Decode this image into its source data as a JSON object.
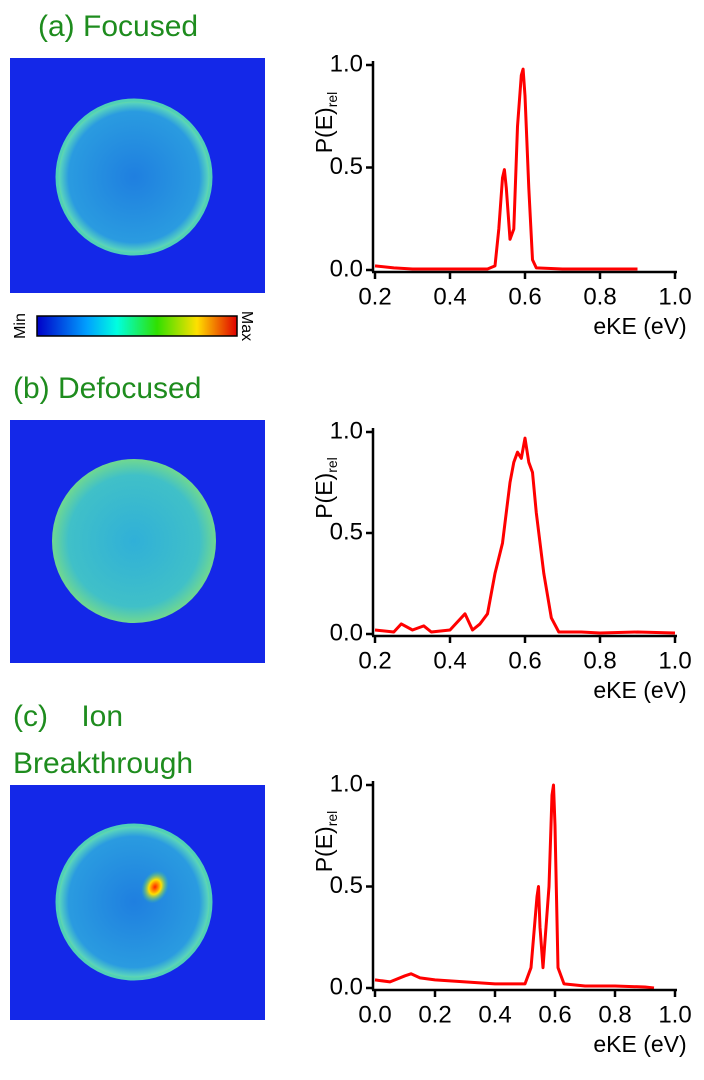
{
  "chart_data": [
    {
      "type": "line",
      "title": "(a) Focused",
      "colorbar_labels": [
        "Min",
        "Max"
      ],
      "y_label": "P(E)",
      "y_label_sub": "rel",
      "x_label": "eKE (eV)",
      "xlim": [
        0.2,
        1.0
      ],
      "xticks": [
        0.2,
        0.4,
        0.6,
        0.8,
        {
          "value": 1.0,
          "label": "1.0"
        }
      ],
      "ylim": [
        0,
        1.0
      ],
      "yticks": [
        {
          "value": 0,
          "label": "0.0"
        },
        0.5,
        {
          "value": 1.0,
          "label": "1.0"
        }
      ],
      "series": [
        {
          "color": "#ff0000",
          "x": [
            0.2,
            0.25,
            0.3,
            0.4,
            0.5,
            0.52,
            0.53,
            0.54,
            0.545,
            0.55,
            0.56,
            0.57,
            0.58,
            0.59,
            0.595,
            0.6,
            0.61,
            0.62,
            0.63,
            0.7,
            0.8,
            0.9
          ],
          "values": [
            0.02,
            0.01,
            0.005,
            0.005,
            0.005,
            0.02,
            0.2,
            0.45,
            0.49,
            0.4,
            0.15,
            0.2,
            0.7,
            0.95,
            0.98,
            0.85,
            0.4,
            0.05,
            0.01,
            0.005,
            0.005,
            0.005
          ]
        }
      ]
    },
    {
      "type": "line",
      "title": "(b) Defocused",
      "y_label": "P(E)",
      "y_label_sub": "rel",
      "x_label": "eKE (eV)",
      "xlim": [
        0.2,
        1.0
      ],
      "xticks": [
        0.2,
        0.4,
        0.6,
        0.8,
        {
          "value": 1.0,
          "label": "1.0"
        }
      ],
      "ylim": [
        0,
        1.0
      ],
      "yticks": [
        {
          "value": 0,
          "label": "0.0"
        },
        0.5,
        {
          "value": 1.0,
          "label": "1.0"
        }
      ],
      "series": [
        {
          "color": "#ff0000",
          "x": [
            0.2,
            0.25,
            0.27,
            0.3,
            0.33,
            0.35,
            0.4,
            0.42,
            0.44,
            0.46,
            0.48,
            0.5,
            0.52,
            0.54,
            0.56,
            0.57,
            0.58,
            0.59,
            0.6,
            0.61,
            0.62,
            0.63,
            0.65,
            0.67,
            0.69,
            0.75,
            0.8,
            0.9,
            1.0
          ],
          "values": [
            0.02,
            0.01,
            0.05,
            0.02,
            0.04,
            0.01,
            0.02,
            0.06,
            0.1,
            0.02,
            0.05,
            0.1,
            0.3,
            0.45,
            0.75,
            0.85,
            0.9,
            0.87,
            0.97,
            0.85,
            0.8,
            0.6,
            0.3,
            0.08,
            0.01,
            0.01,
            0.005,
            0.01,
            0.005
          ]
        }
      ]
    },
    {
      "type": "line",
      "title": "(c)    Ion",
      "subtitle": "Breakthrough",
      "y_label": "P(E)",
      "y_label_sub": "rel",
      "x_label": "eKE (eV)",
      "xlim": [
        0,
        1.0
      ],
      "xticks": [
        {
          "value": 0,
          "label": "0.0"
        },
        0.2,
        0.4,
        0.6,
        0.8,
        {
          "value": 1.0,
          "label": "1.0"
        }
      ],
      "ylim": [
        0,
        1.0
      ],
      "yticks": [
        {
          "value": 0,
          "label": "0.0"
        },
        0.5,
        {
          "value": 1.0,
          "label": "1.0"
        }
      ],
      "series": [
        {
          "color": "#ff0000",
          "x": [
            0.0,
            0.05,
            0.1,
            0.12,
            0.15,
            0.2,
            0.3,
            0.4,
            0.5,
            0.52,
            0.54,
            0.545,
            0.55,
            0.56,
            0.58,
            0.59,
            0.595,
            0.6,
            0.61,
            0.63,
            0.7,
            0.8,
            0.9,
            0.93
          ],
          "values": [
            0.04,
            0.03,
            0.06,
            0.07,
            0.05,
            0.04,
            0.03,
            0.02,
            0.02,
            0.1,
            0.45,
            0.5,
            0.3,
            0.1,
            0.5,
            0.95,
            1.0,
            0.8,
            0.1,
            0.02,
            0.01,
            0.01,
            0.005,
            0.0
          ]
        }
      ]
    }
  ]
}
